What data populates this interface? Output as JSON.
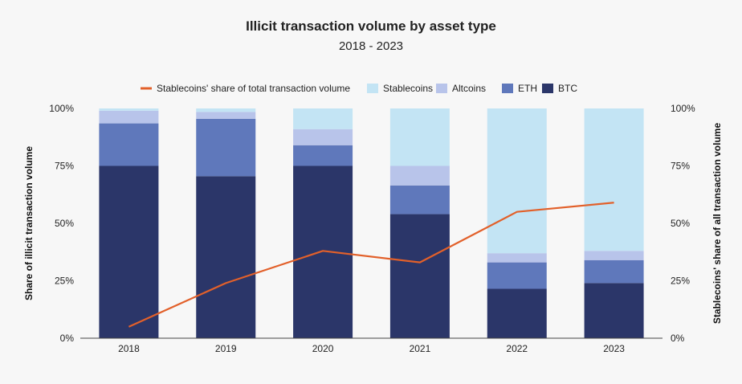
{
  "chart_data": {
    "type": "bar",
    "subtype": "stacked-with-line",
    "title": "Illicit transaction volume by asset type",
    "subtitle": "2018 - 2023",
    "categories": [
      "2018",
      "2019",
      "2020",
      "2021",
      "2022",
      "2023"
    ],
    "series": [
      {
        "name": "BTC",
        "color": "#2b3669",
        "values": [
          75,
          70.5,
          75,
          54,
          21.5,
          24
        ]
      },
      {
        "name": "ETH",
        "color": "#5f78bb",
        "values": [
          18.5,
          25,
          9,
          12.5,
          11.5,
          10
        ]
      },
      {
        "name": "Altcoins",
        "color": "#b8c4ea",
        "values": [
          5.5,
          3,
          7,
          8.5,
          4,
          4
        ]
      },
      {
        "name": "Stablecoins",
        "color": "#c3e4f4",
        "values": [
          1,
          1.5,
          9,
          25,
          63,
          62
        ]
      }
    ],
    "line_series": {
      "name": "Stablecoins' share of total transaction volume",
      "color": "#e2602a",
      "values": [
        5,
        24,
        38,
        33,
        55,
        59
      ]
    },
    "legend": [
      {
        "label": "Stablecoins' share of total transaction volume",
        "kind": "line",
        "color": "#e2602a"
      },
      {
        "label": "Stablecoins",
        "kind": "box",
        "color": "#c3e4f4"
      },
      {
        "label": "Altcoins",
        "kind": "box",
        "color": "#b8c4ea"
      },
      {
        "label": "ETH",
        "kind": "box",
        "color": "#5f78bb"
      },
      {
        "label": "BTC",
        "kind": "box",
        "color": "#2b3669"
      }
    ],
    "legend_position": "top",
    "ylabel": "Share of illicit transaction volume",
    "y2label": "Stablecoins' share of all transaction volume",
    "ylim": [
      0,
      100
    ],
    "y2lim": [
      0,
      100
    ],
    "yticks": [
      "0%",
      "25%",
      "50%",
      "75%",
      "100%"
    ],
    "y2ticks": [
      "0%",
      "25%",
      "50%",
      "75%",
      "100%"
    ],
    "grid": false
  }
}
